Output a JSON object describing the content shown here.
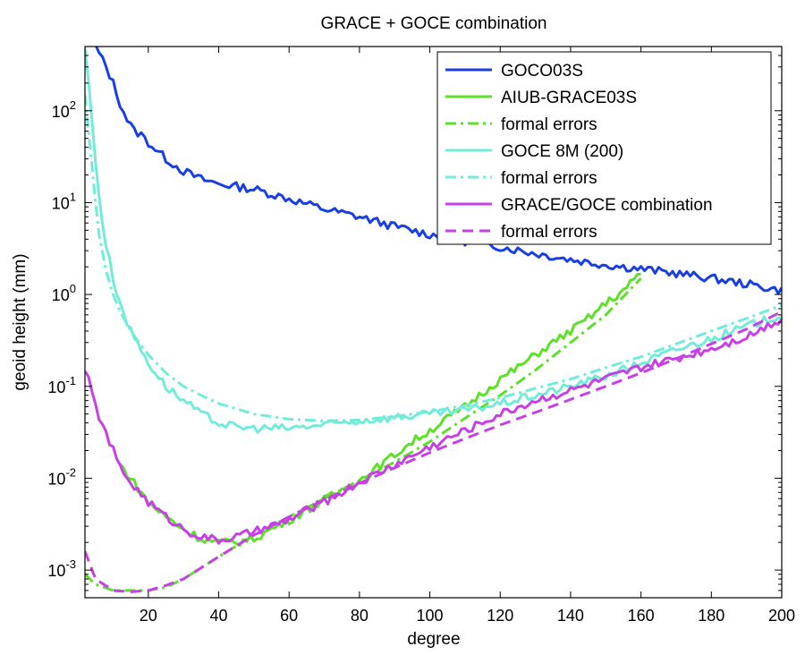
{
  "chart_data": {
    "type": "line",
    "title": "GRACE + GOCE combination",
    "xlabel": "degree",
    "ylabel": "geoid height (mm)",
    "xlim": [
      2,
      200
    ],
    "ylim": [
      0.0005,
      500
    ],
    "yscale": "log",
    "x_ticks": [
      20,
      40,
      60,
      80,
      100,
      120,
      140,
      160,
      180,
      200
    ],
    "x_tick_labels": [
      "20",
      "40",
      "60",
      "80",
      "100",
      "120",
      "140",
      "160",
      "180",
      "200"
    ],
    "y_ticks": [
      0.001,
      0.01,
      0.1,
      1,
      10,
      100
    ],
    "y_tick_labels": [
      {
        "base": "10",
        "exp": "-3"
      },
      {
        "base": "10",
        "exp": "-2"
      },
      {
        "base": "10",
        "exp": "-1"
      },
      {
        "base": "10",
        "exp": "0"
      },
      {
        "base": "10",
        "exp": "1"
      },
      {
        "base": "10",
        "exp": "2"
      }
    ],
    "grid": false,
    "legend_position": "top-right",
    "series": [
      {
        "name": "GOCO03S",
        "color": "#1a3fe0",
        "style": "solid",
        "x": [
          5,
          8,
          10,
          12,
          14,
          16,
          18,
          20,
          25,
          30,
          35,
          40,
          45,
          50,
          60,
          70,
          80,
          90,
          100,
          110,
          120,
          130,
          140,
          150,
          160,
          170,
          180,
          190,
          200
        ],
        "y": [
          500,
          300,
          200,
          120,
          80,
          60,
          55,
          45,
          30,
          22,
          18,
          16,
          15,
          14,
          11,
          8.5,
          7,
          5.5,
          4.5,
          3.8,
          3.3,
          2.8,
          2.4,
          2.1,
          1.9,
          1.7,
          1.5,
          1.3,
          1.1
        ]
      },
      {
        "name": "AIUB-GRACE03S",
        "color": "#5ee02a",
        "style": "solid",
        "x": [
          12,
          15,
          20,
          25,
          30,
          35,
          40,
          45,
          50,
          55,
          60,
          65,
          70,
          75,
          80,
          85,
          90,
          95,
          100,
          105,
          110,
          115,
          120,
          125,
          130,
          135,
          140,
          145,
          150,
          155,
          160
        ],
        "y": [
          0.014,
          0.01,
          0.0055,
          0.0038,
          0.0028,
          0.0022,
          0.002,
          0.002,
          0.0022,
          0.0028,
          0.0035,
          0.0045,
          0.0058,
          0.0075,
          0.0095,
          0.013,
          0.018,
          0.025,
          0.033,
          0.045,
          0.06,
          0.085,
          0.12,
          0.16,
          0.22,
          0.3,
          0.4,
          0.55,
          0.8,
          1.1,
          1.7
        ]
      },
      {
        "name": "formal errors",
        "color": "#5ee02a",
        "style": "dashdot",
        "x": [
          2,
          5,
          10,
          15,
          20,
          25,
          30,
          40,
          50,
          60,
          70,
          80,
          90,
          100,
          110,
          120,
          130,
          140,
          150,
          160
        ],
        "y": [
          0.0009,
          0.0007,
          0.0006,
          0.0006,
          0.0006,
          0.00065,
          0.0008,
          0.0014,
          0.0024,
          0.0038,
          0.006,
          0.0095,
          0.015,
          0.025,
          0.045,
          0.08,
          0.15,
          0.3,
          0.6,
          1.5
        ]
      },
      {
        "name": "GOCE 8M (200)",
        "color": "#72ecd8",
        "style": "solid",
        "x": [
          2,
          3,
          4,
          5,
          6,
          7,
          8,
          10,
          12,
          15,
          18,
          20,
          25,
          30,
          35,
          40,
          45,
          50,
          60,
          70,
          80,
          90,
          100,
          110,
          120,
          130,
          140,
          150,
          160,
          170,
          180,
          190,
          200
        ],
        "y": [
          500,
          200,
          80,
          30,
          12,
          6,
          3.5,
          1.5,
          0.8,
          0.4,
          0.25,
          0.18,
          0.1,
          0.07,
          0.05,
          0.04,
          0.036,
          0.035,
          0.035,
          0.038,
          0.042,
          0.046,
          0.05,
          0.055,
          0.065,
          0.08,
          0.1,
          0.13,
          0.18,
          0.25,
          0.33,
          0.45,
          0.6
        ]
      },
      {
        "name": "formal errors",
        "color": "#72ecd8",
        "style": "dashdot",
        "x": [
          2,
          3,
          4,
          5,
          6,
          8,
          10,
          12,
          15,
          20,
          25,
          30,
          35,
          40,
          50,
          60,
          70,
          80,
          90,
          100,
          110,
          120,
          130,
          140,
          150,
          160,
          170,
          180,
          190,
          200
        ],
        "y": [
          150,
          60,
          25,
          10,
          4.5,
          1.8,
          1,
          0.65,
          0.4,
          0.22,
          0.14,
          0.1,
          0.08,
          0.065,
          0.05,
          0.044,
          0.042,
          0.043,
          0.047,
          0.053,
          0.062,
          0.075,
          0.095,
          0.12,
          0.16,
          0.21,
          0.29,
          0.4,
          0.55,
          0.76
        ]
      },
      {
        "name": "GRACE/GOCE combination",
        "color": "#c740e6",
        "style": "solid",
        "x": [
          2,
          5,
          8,
          10,
          12,
          15,
          20,
          25,
          30,
          35,
          40,
          45,
          50,
          55,
          60,
          65,
          70,
          80,
          90,
          100,
          110,
          120,
          130,
          140,
          150,
          160,
          170,
          180,
          190,
          200
        ],
        "y": [
          0.16,
          0.06,
          0.03,
          0.02,
          0.013,
          0.009,
          0.0055,
          0.0038,
          0.0028,
          0.0023,
          0.0021,
          0.0023,
          0.0026,
          0.003,
          0.0035,
          0.0045,
          0.0055,
          0.009,
          0.014,
          0.022,
          0.033,
          0.05,
          0.07,
          0.09,
          0.12,
          0.16,
          0.2,
          0.26,
          0.35,
          0.55
        ]
      },
      {
        "name": "formal errors",
        "color": "#c740e6",
        "style": "dashed",
        "x": [
          2,
          5,
          10,
          15,
          20,
          25,
          30,
          40,
          50,
          60,
          70,
          80,
          90,
          100,
          110,
          120,
          130,
          140,
          150,
          160,
          170,
          180,
          190,
          200
        ],
        "y": [
          0.0016,
          0.0008,
          0.0006,
          0.00058,
          0.0006,
          0.00068,
          0.0008,
          0.0014,
          0.0024,
          0.0038,
          0.0058,
          0.0088,
          0.013,
          0.019,
          0.027,
          0.038,
          0.052,
          0.072,
          0.1,
          0.14,
          0.2,
          0.29,
          0.42,
          0.65
        ]
      }
    ]
  }
}
